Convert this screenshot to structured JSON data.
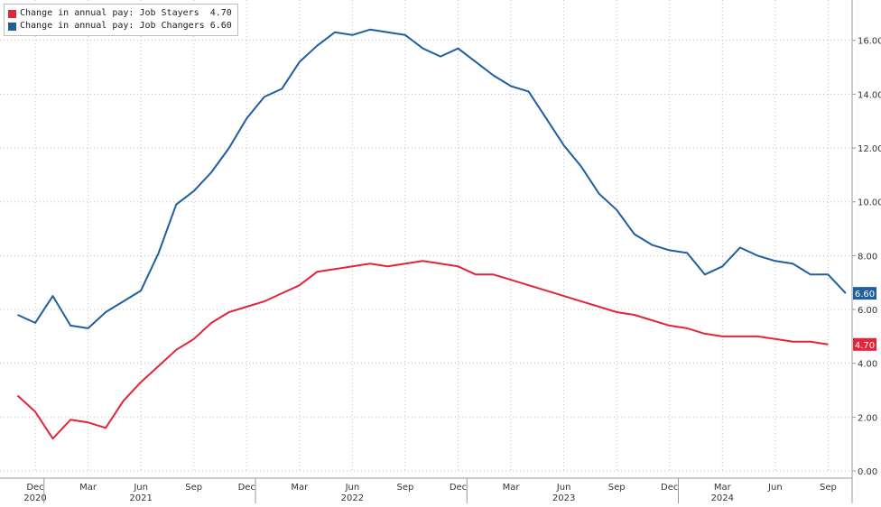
{
  "chart_data": {
    "type": "line",
    "x_start": "2020-11",
    "x_labels": [
      {
        "date": "2020-12",
        "label": "Dec"
      },
      {
        "date": "2021-03",
        "label": "Mar"
      },
      {
        "date": "2021-06",
        "label": "Jun"
      },
      {
        "date": "2021-09",
        "label": "Sep"
      },
      {
        "date": "2021-12",
        "label": "Dec"
      },
      {
        "date": "2022-03",
        "label": "Mar"
      },
      {
        "date": "2022-06",
        "label": "Jun"
      },
      {
        "date": "2022-09",
        "label": "Sep"
      },
      {
        "date": "2022-12",
        "label": "Dec"
      },
      {
        "date": "2023-03",
        "label": "Mar"
      },
      {
        "date": "2023-06",
        "label": "Jun"
      },
      {
        "date": "2023-09",
        "label": "Sep"
      },
      {
        "date": "2023-12",
        "label": "Dec"
      },
      {
        "date": "2024-03",
        "label": "Mar"
      },
      {
        "date": "2024-06",
        "label": "Jun"
      },
      {
        "date": "2024-09",
        "label": "Sep"
      }
    ],
    "x_years": [
      {
        "date": "2020-12",
        "label": "2020"
      },
      {
        "date": "2021-06",
        "label": "2021"
      },
      {
        "date": "2022-06",
        "label": "2022"
      },
      {
        "date": "2023-06",
        "label": "2023"
      },
      {
        "date": "2024-03",
        "label": "2024"
      }
    ],
    "year_separators": [
      "2021-01",
      "2022-01",
      "2023-01",
      "2024-01"
    ],
    "ylim": [
      0,
      17.5
    ],
    "yticks": [
      "0.00",
      "2.00",
      "4.00",
      "6.00",
      "8.00",
      "10.00",
      "12.00",
      "14.00",
      "16.00"
    ],
    "grid": true,
    "legend_position": "top-left",
    "series": [
      {
        "name": "Change in annual pay: Job Stayers",
        "legend_value": "4.70",
        "color": "#e3243b",
        "end_label": "4.70",
        "points": [
          [
            "2020-11",
            2.8
          ],
          [
            "2020-12",
            2.2
          ],
          [
            "2021-01",
            1.2
          ],
          [
            "2021-02",
            1.9
          ],
          [
            "2021-03",
            1.8
          ],
          [
            "2021-04",
            1.6
          ],
          [
            "2021-05",
            2.6
          ],
          [
            "2021-06",
            3.3
          ],
          [
            "2021-07",
            3.9
          ],
          [
            "2021-08",
            4.5
          ],
          [
            "2021-09",
            4.9
          ],
          [
            "2021-10",
            5.5
          ],
          [
            "2021-11",
            5.9
          ],
          [
            "2021-12",
            6.1
          ],
          [
            "2022-01",
            6.3
          ],
          [
            "2022-02",
            6.6
          ],
          [
            "2022-03",
            6.9
          ],
          [
            "2022-04",
            7.4
          ],
          [
            "2022-05",
            7.5
          ],
          [
            "2022-06",
            7.6
          ],
          [
            "2022-07",
            7.7
          ],
          [
            "2022-08",
            7.6
          ],
          [
            "2022-09",
            7.7
          ],
          [
            "2022-10",
            7.8
          ],
          [
            "2022-11",
            7.7
          ],
          [
            "2022-12",
            7.6
          ],
          [
            "2023-01",
            7.3
          ],
          [
            "2023-02",
            7.3
          ],
          [
            "2023-03",
            7.1
          ],
          [
            "2023-04",
            6.9
          ],
          [
            "2023-05",
            6.7
          ],
          [
            "2023-06",
            6.5
          ],
          [
            "2023-07",
            6.3
          ],
          [
            "2023-08",
            6.1
          ],
          [
            "2023-09",
            5.9
          ],
          [
            "2023-10",
            5.8
          ],
          [
            "2023-11",
            5.6
          ],
          [
            "2023-12",
            5.4
          ],
          [
            "2024-01",
            5.3
          ],
          [
            "2024-02",
            5.1
          ],
          [
            "2024-03",
            5.0
          ],
          [
            "2024-04",
            5.0
          ],
          [
            "2024-05",
            5.0
          ],
          [
            "2024-06",
            4.9
          ],
          [
            "2024-07",
            4.8
          ],
          [
            "2024-08",
            4.8
          ],
          [
            "2024-09",
            4.7
          ]
        ]
      },
      {
        "name": "Change in annual pay: Job Changers",
        "legend_value": "6.60",
        "color": "#1f5f9f",
        "end_label": "6.60",
        "points": [
          [
            "2020-11",
            5.8
          ],
          [
            "2020-12",
            5.5
          ],
          [
            "2021-01",
            6.5
          ],
          [
            "2021-02",
            5.4
          ],
          [
            "2021-03",
            5.3
          ],
          [
            "2021-04",
            5.9
          ],
          [
            "2021-05",
            6.3
          ],
          [
            "2021-06",
            6.7
          ],
          [
            "2021-07",
            8.1
          ],
          [
            "2021-08",
            9.9
          ],
          [
            "2021-09",
            10.4
          ],
          [
            "2021-10",
            11.1
          ],
          [
            "2021-11",
            12.0
          ],
          [
            "2021-12",
            13.1
          ],
          [
            "2022-01",
            13.9
          ],
          [
            "2022-02",
            14.2
          ],
          [
            "2022-03",
            15.2
          ],
          [
            "2022-04",
            15.8
          ],
          [
            "2022-05",
            16.3
          ],
          [
            "2022-06",
            16.2
          ],
          [
            "2022-07",
            16.4
          ],
          [
            "2022-08",
            16.3
          ],
          [
            "2022-09",
            16.2
          ],
          [
            "2022-10",
            15.7
          ],
          [
            "2022-11",
            15.4
          ],
          [
            "2022-12",
            15.7
          ],
          [
            "2023-01",
            15.2
          ],
          [
            "2023-02",
            14.7
          ],
          [
            "2023-03",
            14.3
          ],
          [
            "2023-04",
            14.1
          ],
          [
            "2023-05",
            13.1
          ],
          [
            "2023-06",
            12.1
          ],
          [
            "2023-07",
            11.3
          ],
          [
            "2023-08",
            10.3
          ],
          [
            "2023-09",
            9.7
          ],
          [
            "2023-10",
            8.8
          ],
          [
            "2023-11",
            8.4
          ],
          [
            "2023-12",
            8.2
          ],
          [
            "2024-01",
            8.1
          ],
          [
            "2024-02",
            7.3
          ],
          [
            "2024-03",
            7.6
          ],
          [
            "2024-04",
            8.3
          ],
          [
            "2024-05",
            8.0
          ],
          [
            "2024-06",
            7.8
          ],
          [
            "2024-07",
            7.7
          ],
          [
            "2024-08",
            7.3
          ],
          [
            "2024-09",
            7.3
          ],
          [
            "2024-10",
            6.6
          ]
        ]
      }
    ]
  }
}
